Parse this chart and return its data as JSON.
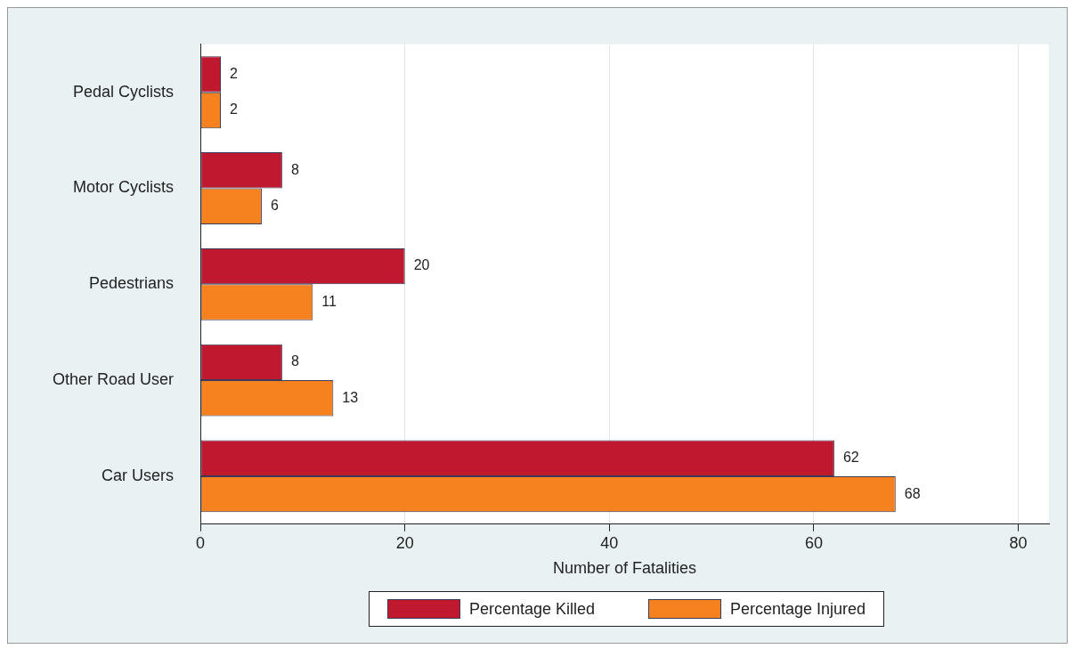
{
  "chart_data": {
    "type": "bar",
    "orientation": "horizontal",
    "xlabel": "Number of Fatalities",
    "categories": [
      "Pedal Cyclists",
      "Motor Cyclists",
      "Pedestrians",
      "Other Road User",
      "Car Users"
    ],
    "series": [
      {
        "name": "Percentage Killed",
        "color": "#c0192f",
        "values": [
          2,
          8,
          20,
          8,
          62
        ]
      },
      {
        "name": "Percentage Injured",
        "color": "#f5821f",
        "values": [
          2,
          6,
          11,
          13,
          68
        ]
      }
    ],
    "xlim": [
      0,
      83
    ],
    "xticks": [
      0,
      20,
      40,
      60,
      80
    ],
    "grid": "x",
    "legend": "bottom",
    "data_labels": true
  }
}
